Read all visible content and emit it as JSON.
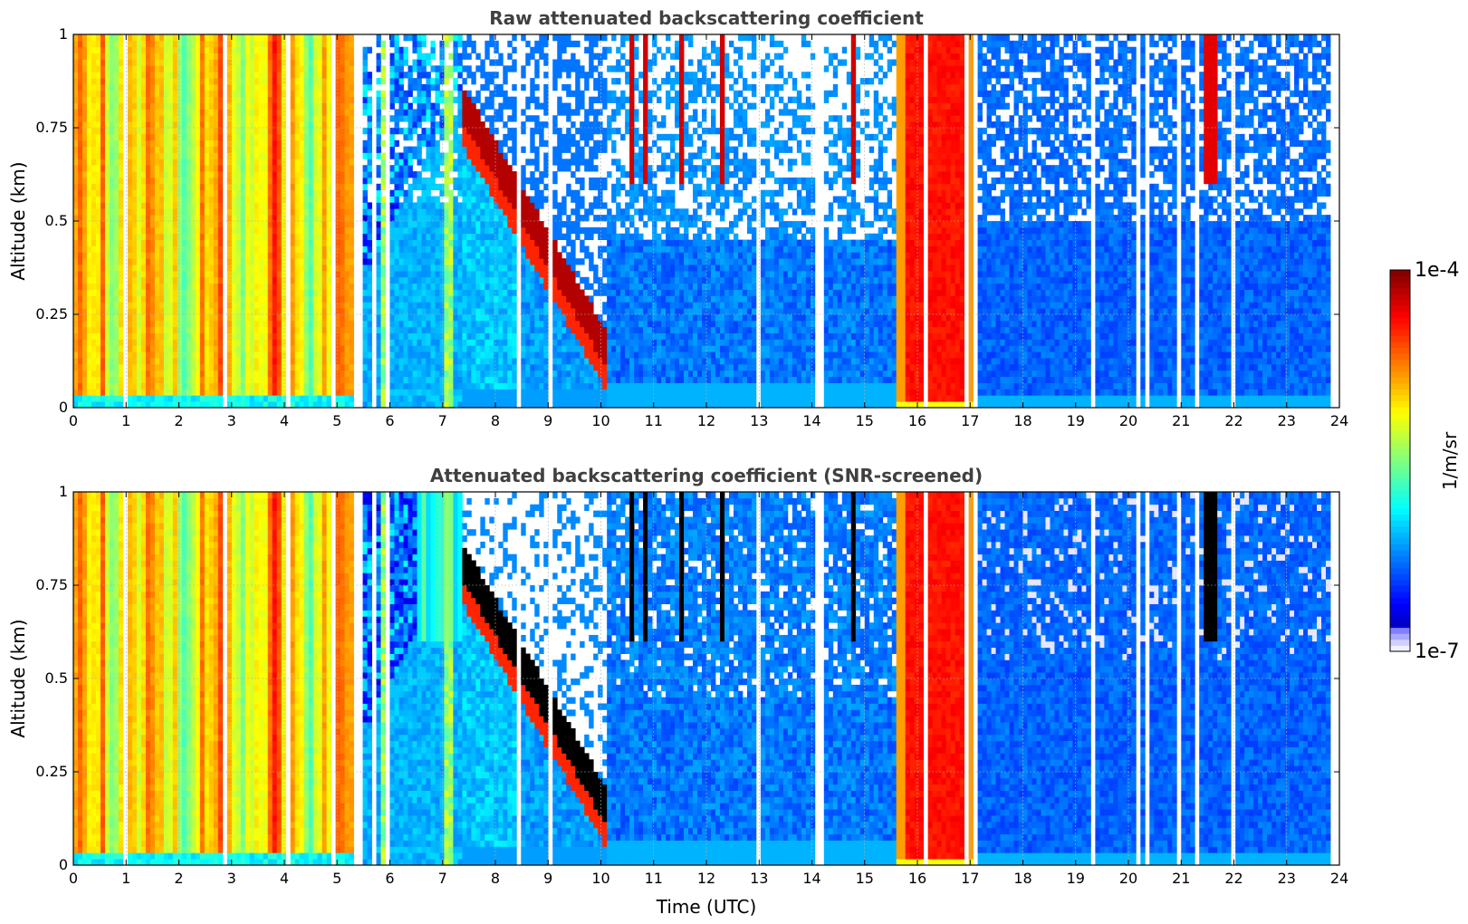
{
  "chart_data": [
    {
      "type": "heatmap",
      "title": "Raw attenuated backscattering coefficient",
      "xlabel": "",
      "ylabel": "Altitude (km)",
      "xlim": [
        0,
        24
      ],
      "ylim": [
        0,
        1
      ],
      "xticks": [
        "0",
        "1",
        "2",
        "3",
        "4",
        "5",
        "6",
        "7",
        "8",
        "9",
        "10",
        "11",
        "12",
        "13",
        "14",
        "15",
        "16",
        "17",
        "18",
        "19",
        "20",
        "21",
        "22",
        "23",
        "24"
      ],
      "yticks": [
        "0",
        "0.25",
        "0.5",
        "0.75",
        "1"
      ],
      "grid": true,
      "screened": false
    },
    {
      "type": "heatmap",
      "title": "Attenuated backscattering coefficient (SNR-screened)",
      "xlabel": "Time (UTC)",
      "ylabel": "Altitude (km)",
      "xlim": [
        0,
        24
      ],
      "ylim": [
        0,
        1
      ],
      "xticks": [
        "0",
        "1",
        "2",
        "3",
        "4",
        "5",
        "6",
        "7",
        "8",
        "9",
        "10",
        "11",
        "12",
        "13",
        "14",
        "15",
        "16",
        "17",
        "18",
        "19",
        "20",
        "21",
        "22",
        "23",
        "24"
      ],
      "yticks": [
        "0",
        "0.25",
        "0.5",
        "0.75",
        "1"
      ],
      "grid": true,
      "screened": true
    }
  ],
  "colorbar": {
    "label": "1/m/sr",
    "max_label": "1e-4",
    "min_label": "1e-7",
    "scale": "log",
    "colormap": "jet"
  }
}
